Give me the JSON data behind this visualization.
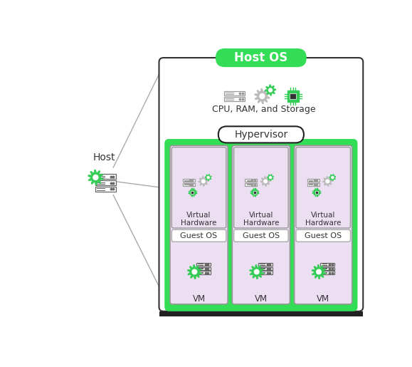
{
  "bg_color": "#ffffff",
  "host_os_label": "Host OS",
  "host_os_bg": "#33dd55",
  "host_os_text_color": "#ffffff",
  "hypervisor_label": "Hypervisor",
  "hypervisor_bg": "#ffffff",
  "hypervisor_border": "#222222",
  "main_box_bg": "#ffffff",
  "main_box_border": "#333333",
  "green_inner_bg": "#33dd55",
  "vm_box_bg": "#eddff2",
  "vm_box_border": "#999999",
  "vh_box_bg": "#eddff2",
  "vh_box_border": "#999999",
  "guest_os_bg": "#ffffff",
  "guest_os_border": "#aaaaaa",
  "guest_os_label": "Guest OS",
  "vm_labels": [
    "VM",
    "VM",
    "VM"
  ],
  "vh_labels": [
    "Virtual\nHardware",
    "Virtual\nHardware",
    "Virtual\nHardware"
  ],
  "cpu_ram_label": "CPU, RAM, and Storage",
  "host_label": "Host",
  "gear_color_green": "#33cc55",
  "gear_color_gray": "#aaaaaa",
  "chip_color": "#33cc55",
  "server_border": "#888888",
  "server_bg": "#ffffff",
  "text_color": "#333333",
  "line_color": "#aaaaaa",
  "dark_bar_color": "#222222"
}
